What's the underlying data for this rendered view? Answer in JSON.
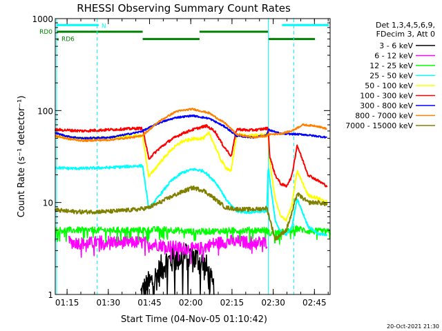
{
  "chart_data": {
    "type": "line",
    "title": "RHESSI Observing Summary Count Rates",
    "ylabel": "Count Rate (s⁻¹ detector⁻¹)",
    "xlabel": "Start Time (04-Nov-05 01:10:42)",
    "yscale": "log",
    "ylim": [
      1,
      1000
    ],
    "xlim_minutes": [
      0,
      100
    ],
    "x_tick_labels": [
      "01:15",
      "01:30",
      "01:45",
      "02:00",
      "02:15",
      "02:30",
      "02:45"
    ],
    "x_tick_minutes": [
      4.3,
      19.3,
      34.3,
      49.3,
      64.3,
      79.3,
      94.3
    ],
    "y_tick_labels": [
      "1",
      "10",
      "100",
      "1000"
    ],
    "y_tick_values": [
      1,
      10,
      100,
      1000
    ],
    "grid": false,
    "legend_position": "right",
    "legend_header": [
      "Det 1,3,4,5,6,9,",
      "FDecim 3, Att 0"
    ],
    "timestamp": "20-Oct-2021 21:30",
    "flags": [
      {
        "label": "N",
        "color": "#00ffff",
        "segments": [
          [
            0.5,
            15.8
          ],
          [
            82.5,
            99.5
          ]
        ],
        "value": 850
      },
      {
        "label": "RD0",
        "color": "#008000",
        "segments": [
          [
            0.5,
            31.8
          ],
          [
            52.5,
            77.5
          ]
        ],
        "value": 720
      },
      {
        "label": "RD6",
        "color": "#008000",
        "segments": [
          [
            31.8,
            52.5
          ],
          [
            77.5,
            94.5
          ]
        ],
        "value": 600
      }
    ],
    "solid_vlines_minutes": [
      0.5,
      77.5
    ],
    "dashed_vlines_minutes": [
      15.2,
      86.8
    ],
    "series": [
      {
        "name": "3 - 6 keV",
        "color": "#000000",
        "x": [
          31,
          37,
          40,
          44,
          48,
          52,
          55,
          58
        ],
        "values": [
          1.0,
          1.6,
          2.2,
          2.5,
          2.6,
          2.4,
          1.9,
          1.0
        ]
      },
      {
        "name": "6 - 12 keV",
        "color": "#ff00ff",
        "x": [
          5,
          12,
          18,
          24,
          30,
          34,
          40,
          46,
          52,
          58,
          64,
          70,
          77
        ],
        "values": [
          3.7,
          3.6,
          3.8,
          3.7,
          3.7,
          3.6,
          3.4,
          3.2,
          3.1,
          3.6,
          3.8,
          3.7,
          3.7
        ]
      },
      {
        "name": "12 - 25 keV",
        "color": "#00ff00",
        "x": [
          0,
          10,
          20,
          30,
          40,
          50,
          60,
          70,
          77,
          78,
          84,
          88,
          92,
          100
        ],
        "values": [
          5.0,
          5.0,
          5.0,
          5.0,
          5.1,
          4.8,
          4.9,
          5.0,
          5.0,
          4.6,
          4.8,
          5.2,
          4.9,
          4.8
        ]
      },
      {
        "name": "25 - 50 keV",
        "color": "#00ffff",
        "x": [
          0,
          5,
          10,
          20,
          30,
          31.8,
          34,
          38,
          42,
          46,
          50,
          54,
          58,
          60,
          62,
          64,
          66,
          70,
          74,
          77,
          77.5,
          78,
          80,
          82,
          84,
          86,
          88,
          92,
          96,
          99
        ],
        "values": [
          24,
          23.5,
          23.5,
          24,
          25,
          25,
          8.5,
          12,
          17,
          21,
          23,
          22,
          17,
          14,
          11,
          9.2,
          8.0,
          7.8,
          8.0,
          8.0,
          25,
          18,
          6.5,
          4.8,
          4.5,
          5.2,
          11,
          5.5,
          4.5,
          4.5
        ]
      },
      {
        "name": "50 - 100 keV",
        "color": "#ffff00",
        "x": [
          0,
          5,
          10,
          20,
          30,
          31.8,
          34,
          38,
          42,
          46,
          50,
          53,
          54,
          56,
          58,
          60,
          62,
          64,
          66,
          70,
          74,
          77,
          77.5,
          78,
          80,
          82,
          84,
          86,
          88,
          92,
          96,
          99
        ],
        "values": [
          52,
          51,
          50,
          51,
          53,
          53,
          19,
          27,
          37,
          46,
          49,
          50,
          50,
          57,
          42,
          30,
          24,
          22,
          55,
          53,
          54,
          55,
          55,
          28,
          11,
          7,
          6.5,
          9,
          22,
          12,
          11,
          10
        ]
      },
      {
        "name": "100 - 300 keV",
        "color": "#ff0000",
        "x": [
          0,
          5,
          10,
          20,
          30,
          31.8,
          34,
          38,
          42,
          46,
          50,
          54,
          55,
          58,
          61,
          64,
          66,
          70,
          74,
          77,
          77.5,
          78,
          80,
          82,
          84,
          86,
          88,
          92,
          96,
          99
        ],
        "values": [
          62,
          61,
          60,
          62,
          64,
          64,
          30,
          39,
          48,
          56,
          62,
          67,
          68,
          60,
          42,
          32,
          63,
          61,
          62,
          64,
          64,
          32,
          20,
          16,
          15,
          19,
          42,
          20,
          17,
          15
        ]
      },
      {
        "name": "300 - 800 keV",
        "color": "#0000ff",
        "x": [
          0,
          5,
          10,
          20,
          30,
          31.8,
          38,
          44,
          50,
          56,
          62,
          66,
          72,
          77,
          77.5,
          82,
          90,
          99
        ],
        "values": [
          57,
          52,
          50,
          51,
          58,
          60,
          74,
          84,
          88,
          82,
          66,
          53,
          51,
          54,
          62,
          56,
          55,
          51
        ]
      },
      {
        "name": "800 - 7000 keV",
        "color": "#ff8000",
        "x": [
          0,
          5,
          10,
          20,
          30,
          31.8,
          38,
          44,
          50,
          56,
          62,
          66,
          72,
          77,
          77.5,
          82,
          86,
          90,
          95,
          99
        ],
        "values": [
          53,
          49,
          47,
          48,
          52,
          54,
          77,
          98,
          104,
          94,
          72,
          55,
          51,
          53,
          55,
          56,
          60,
          70,
          68,
          63
        ]
      },
      {
        "name": "7000 - 15000 keV",
        "color": "#808000",
        "x": [
          0,
          5,
          10,
          20,
          30,
          34,
          38,
          42,
          46,
          50,
          54,
          58,
          62,
          66,
          70,
          74,
          77,
          80,
          84,
          86,
          88,
          92,
          96,
          99
        ],
        "values": [
          8.3,
          8.0,
          7.9,
          8.0,
          8.4,
          8.8,
          10,
          11.5,
          13,
          14.5,
          13.5,
          11,
          8.8,
          8.5,
          8.4,
          8.5,
          8.7,
          4.0,
          5.0,
          7.5,
          12.5,
          10,
          10,
          9.5
        ]
      }
    ]
  }
}
